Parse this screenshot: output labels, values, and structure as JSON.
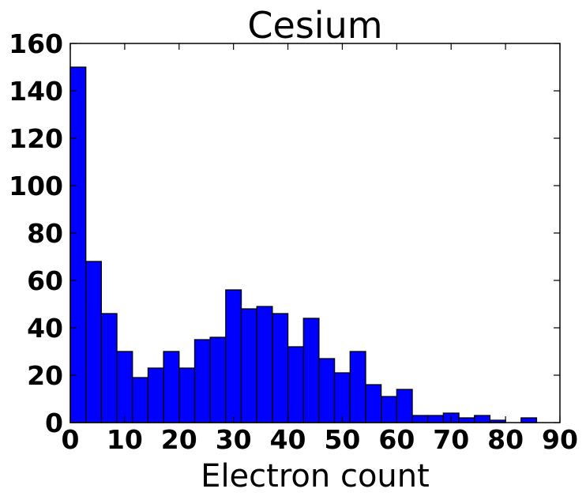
{
  "chart_data": {
    "type": "bar",
    "title": "Cesium",
    "xlabel": "Electron count",
    "ylabel": "",
    "xlim": [
      0,
      90
    ],
    "ylim": [
      0,
      160
    ],
    "x_ticks": [
      "0",
      "10",
      "20",
      "30",
      "40",
      "50",
      "60",
      "70",
      "80",
      "90"
    ],
    "y_ticks": [
      "0",
      "20",
      "40",
      "60",
      "80",
      "100",
      "120",
      "140",
      "160"
    ],
    "bin_edges": [
      0,
      2.86,
      5.71,
      8.57,
      11.43,
      14.29,
      17.14,
      20,
      22.86,
      25.71,
      28.57,
      31.43,
      34.29,
      37.14,
      40,
      42.86,
      45.71,
      48.57,
      51.43,
      54.29,
      57.14,
      60,
      62.86,
      65.71,
      68.57,
      71.43,
      74.29,
      77.14,
      80,
      82.86,
      85.71
    ],
    "values": [
      150,
      68,
      46,
      30,
      19,
      23,
      30,
      23,
      35,
      36,
      56,
      48,
      49,
      46,
      32,
      44,
      27,
      21,
      30,
      16,
      11,
      14,
      3,
      3,
      4,
      2,
      3,
      1,
      0,
      2
    ],
    "bar_color": "#0000ff",
    "edge_color": "#000000",
    "grid": false
  }
}
